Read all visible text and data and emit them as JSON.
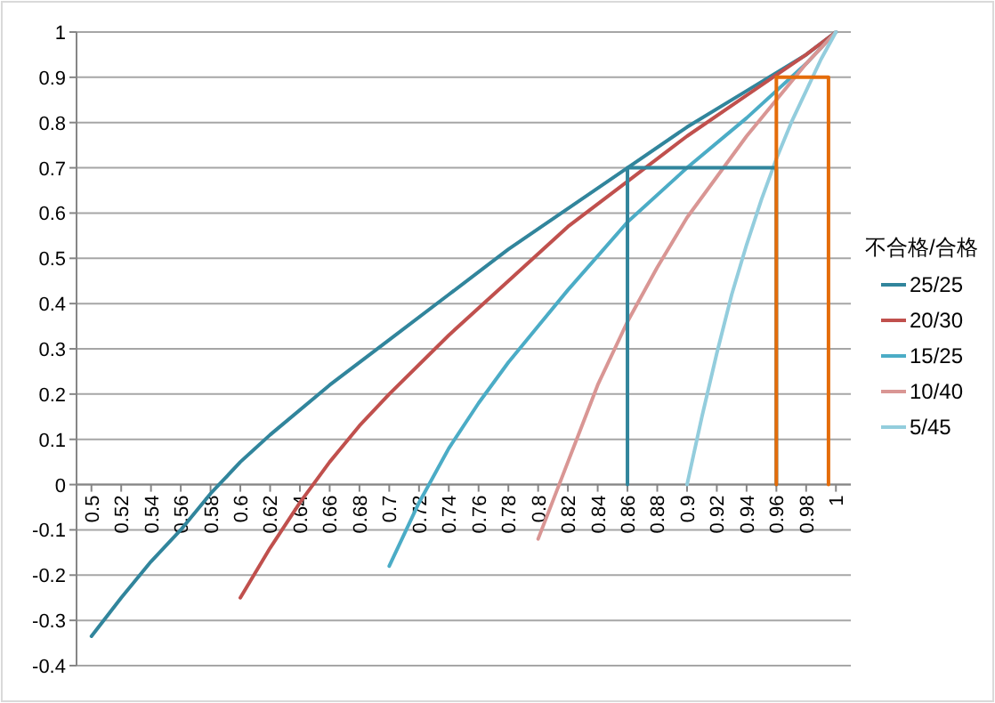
{
  "chart_data": {
    "type": "line",
    "legend_title": "不合格/合格",
    "legend": "right",
    "grid": "y",
    "xlim": [
      0.49,
      1.01
    ],
    "ylim": [
      -0.4,
      1
    ],
    "xticks": [
      0.5,
      0.52,
      0.54,
      0.56,
      0.58,
      0.6,
      0.62,
      0.64,
      0.66,
      0.68,
      0.7,
      0.72,
      0.74,
      0.76,
      0.78,
      0.8,
      0.82,
      0.84,
      0.86,
      0.88,
      0.9,
      0.92,
      0.94,
      0.96,
      0.98,
      1
    ],
    "yticks": [
      -0.4,
      -0.3,
      -0.2,
      -0.1,
      0,
      0.1,
      0.2,
      0.3,
      0.4,
      0.5,
      0.6,
      0.7,
      0.8,
      0.9,
      1
    ],
    "series": [
      {
        "name": "25/25",
        "color": "#31859c",
        "x": [
          0.5,
          0.52,
          0.54,
          0.56,
          0.58,
          0.6,
          0.62,
          0.66,
          0.7,
          0.74,
          0.78,
          0.82,
          0.86,
          0.9,
          0.94,
          0.98,
          1
        ],
        "values": [
          -0.335,
          -0.25,
          -0.17,
          -0.1,
          -0.02,
          0.05,
          0.11,
          0.22,
          0.32,
          0.42,
          0.52,
          0.61,
          0.7,
          0.79,
          0.87,
          0.95,
          1
        ]
      },
      {
        "name": "20/30",
        "color": "#c0504d",
        "x": [
          0.6,
          0.62,
          0.64,
          0.66,
          0.68,
          0.7,
          0.74,
          0.78,
          0.82,
          0.86,
          0.9,
          0.94,
          0.98,
          1
        ],
        "values": [
          -0.25,
          -0.14,
          -0.04,
          0.05,
          0.13,
          0.2,
          0.33,
          0.45,
          0.57,
          0.67,
          0.77,
          0.86,
          0.95,
          1
        ]
      },
      {
        "name": "15/25",
        "color": "#4bacc6",
        "x": [
          0.7,
          0.72,
          0.74,
          0.76,
          0.78,
          0.8,
          0.82,
          0.86,
          0.9,
          0.94,
          0.98,
          1
        ],
        "values": [
          -0.18,
          -0.04,
          0.08,
          0.18,
          0.27,
          0.35,
          0.43,
          0.58,
          0.7,
          0.81,
          0.93,
          1
        ]
      },
      {
        "name": "10/40",
        "color": "#d99694",
        "x": [
          0.8,
          0.82,
          0.84,
          0.86,
          0.88,
          0.9,
          0.92,
          0.94,
          0.96,
          0.98,
          1
        ],
        "values": [
          -0.12,
          0.05,
          0.22,
          0.36,
          0.48,
          0.59,
          0.68,
          0.77,
          0.85,
          0.93,
          1
        ]
      },
      {
        "name": "5/45",
        "color": "#93cddd",
        "x": [
          0.9,
          0.91,
          0.92,
          0.93,
          0.94,
          0.95,
          0.96,
          0.97,
          0.98,
          0.99,
          1
        ],
        "values": [
          0,
          0.15,
          0.29,
          0.42,
          0.53,
          0.63,
          0.72,
          0.8,
          0.87,
          0.94,
          1
        ]
      },
      {
        "color": "#31859c",
        "x": [
          0.86,
          0.86,
          0.96,
          0.96
        ],
        "values": [
          0,
          0.7,
          0.7,
          0
        ]
      },
      {
        "color": "#e46c0a",
        "x": [
          0.96,
          0.96,
          0.995,
          0.995
        ],
        "values": [
          0,
          0.9,
          0.9,
          0
        ]
      }
    ]
  }
}
